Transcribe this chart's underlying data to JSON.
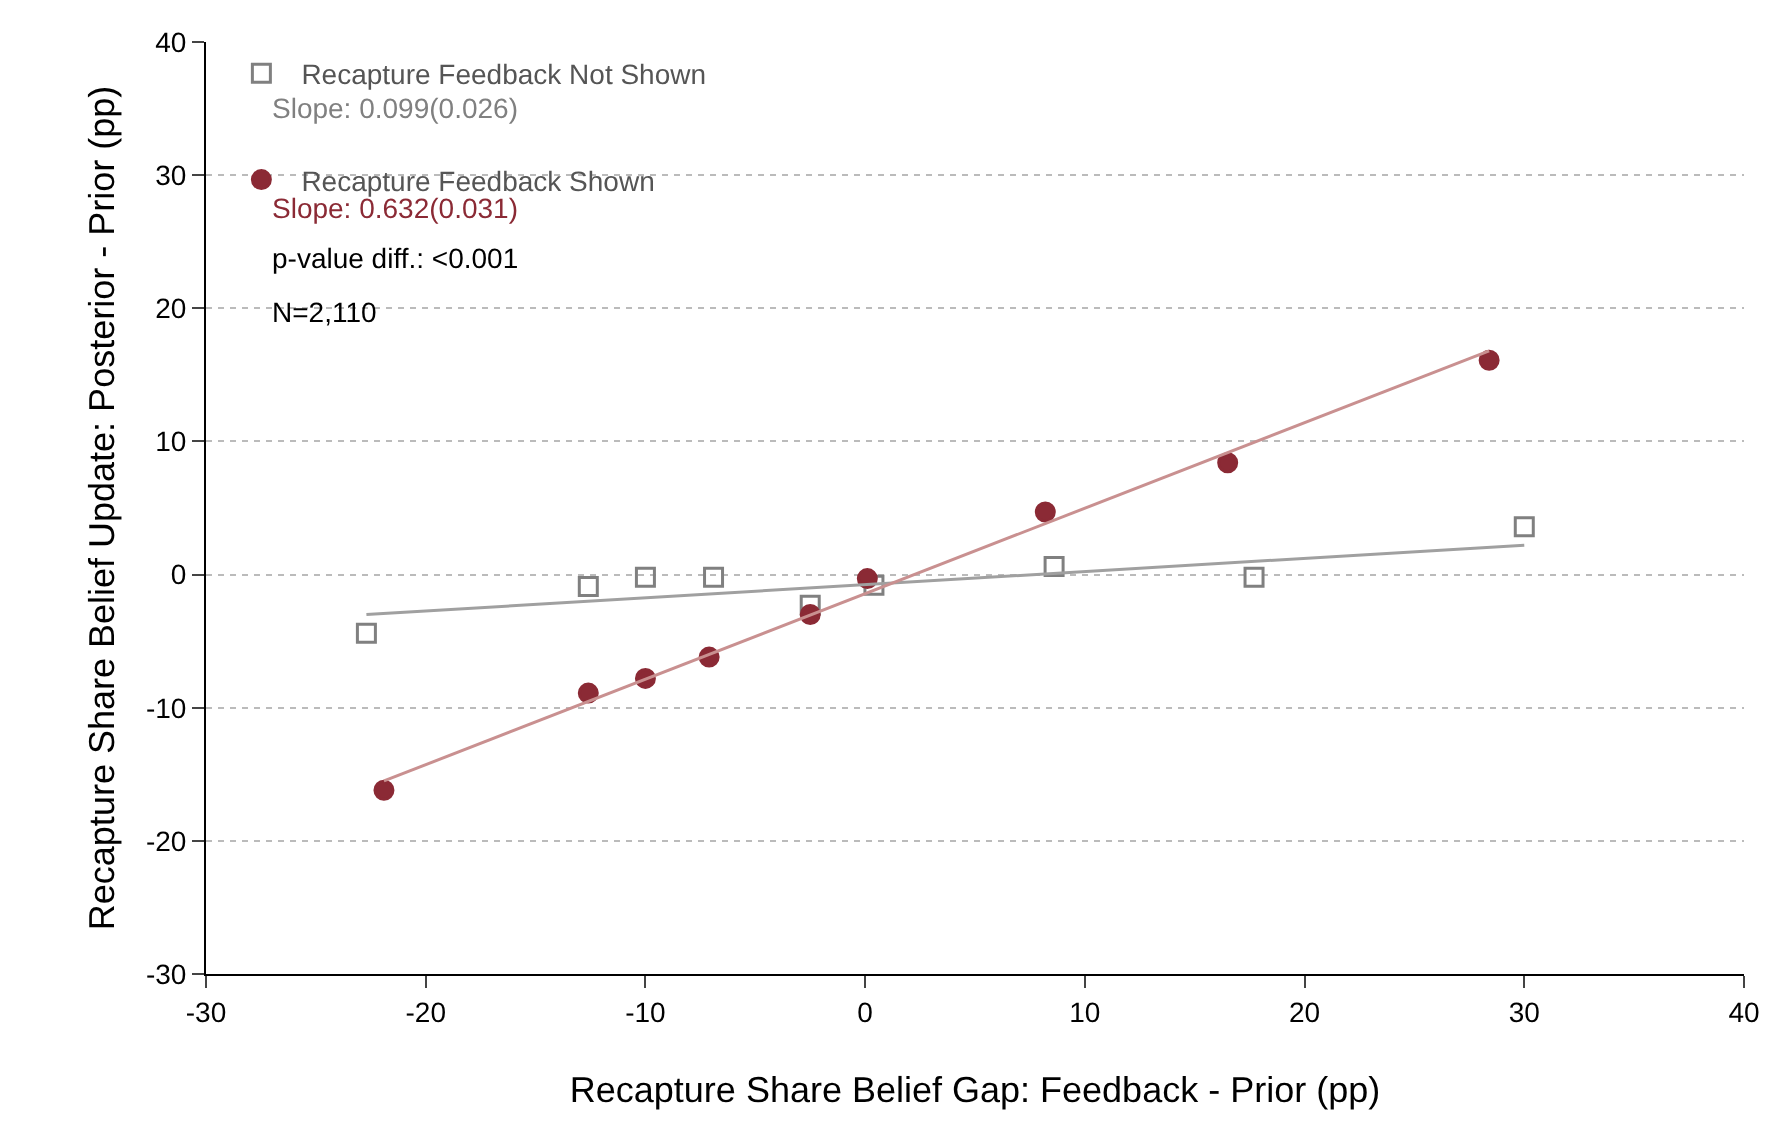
{
  "chart_data": {
    "type": "scatter",
    "xlabel": "Recapture Share Belief Gap: Feedback - Prior (pp)",
    "ylabel": "Recapture Share Belief Update: Posterior - Prior (pp)",
    "xlim": [
      -30,
      40
    ],
    "xticks": [
      -30,
      -20,
      -10,
      0,
      10,
      20,
      30,
      40
    ],
    "ylim": [
      -30,
      40
    ],
    "yticks": [
      -30,
      -20,
      -10,
      0,
      10,
      20,
      30,
      40
    ],
    "grid": "y",
    "legend": "top left",
    "series": [
      {
        "name": "Recapture Feedback Not Shown",
        "type": "scatter",
        "marker": "square",
        "color": "#808080",
        "x": [
          -22.7,
          -12.6,
          -10.0,
          -6.9,
          -2.5,
          0.4,
          8.6,
          17.7,
          30.0
        ],
        "values": [
          -4.4,
          -0.9,
          -0.2,
          -0.2,
          -2.3,
          -0.8,
          0.6,
          -0.2,
          3.6
        ]
      },
      {
        "name": "Recapture Feedback Shown",
        "type": "scatter",
        "marker": "circle",
        "color": "#8b2a35",
        "x": [
          -21.9,
          -12.6,
          -10.0,
          -7.1,
          -2.5,
          0.1,
          8.2,
          16.5,
          28.4
        ],
        "values": [
          -16.2,
          -8.9,
          -7.8,
          -6.2,
          -3.0,
          -0.3,
          4.7,
          8.4,
          16.1
        ]
      },
      {
        "type": "line",
        "color": "#a0a0a0",
        "x": [
          -22.7,
          30.0
        ],
        "values": [
          -3.0,
          2.2
        ]
      },
      {
        "type": "line",
        "color": "#c99090",
        "x": [
          -21.9,
          28.4
        ],
        "values": [
          -15.5,
          16.8
        ]
      }
    ],
    "annotations": [
      "Slope: 0.099(0.026)",
      "Slope: 0.632(0.031)",
      "p-value diff.: <0.001",
      "N=2,110"
    ]
  }
}
